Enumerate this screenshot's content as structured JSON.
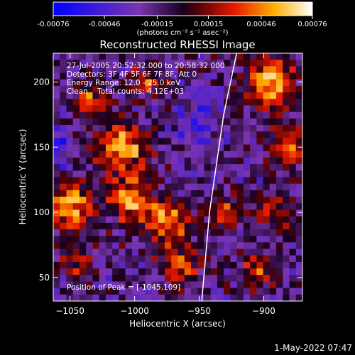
{
  "chart_data": {
    "type": "heatmap",
    "title": "Reconstructed RHESSI Image",
    "xlabel": "Heliocentric X (arcsec)",
    "ylabel": "Heliocentric Y (arcsec)",
    "xlim": [
      -1063,
      -870
    ],
    "ylim": [
      32,
      222
    ],
    "x_ticks": [
      -1050,
      -1000,
      -950,
      -900
    ],
    "y_ticks": [
      50,
      100,
      150,
      200
    ],
    "colorbar": {
      "min": -0.00076,
      "max": 0.00076,
      "tick_values": [
        -0.00076,
        -0.00046,
        -0.00015,
        0.00015,
        0.00046,
        0.00076
      ],
      "tick_labels": [
        "-0.00076",
        "-0.00046",
        "-0.00015",
        "0.00015",
        "0.00046",
        "0.00076"
      ],
      "units_label": "(photons cm⁻² s⁻¹ asec⁻²)"
    },
    "annotations": {
      "time_range": "27-Jul-2005 20:52:32.000 to 20:58:32.000",
      "detectors": "Detectors: 3F 4F 5F 6F 7F 8F, Att 0",
      "energy_range": "Energy Range: 12.0 - 25.0 keV",
      "clean_counts": "Clean    Total counts: 4.12E+03",
      "peak_position": "Position of Peak = [-1045,109]"
    },
    "limb": [
      [
        -921,
        222
      ],
      [
        -931,
        175
      ],
      [
        -942,
        100
      ],
      [
        -948,
        32
      ]
    ],
    "peak": [
      -1045,
      109
    ],
    "grid": false,
    "grid_cells": [
      38,
      38
    ],
    "intensity_blobs": [
      {
        "x": -1050,
        "y": 105,
        "amp": 1.0,
        "r": 18
      },
      {
        "x": -1010,
        "y": 150,
        "amp": 0.9,
        "r": 20
      },
      {
        "x": -1005,
        "y": 110,
        "amp": 0.8,
        "r": 16
      },
      {
        "x": -975,
        "y": 95,
        "amp": 0.85,
        "r": 18
      },
      {
        "x": -965,
        "y": 60,
        "amp": 0.7,
        "r": 14
      },
      {
        "x": -1035,
        "y": 185,
        "amp": 0.6,
        "r": 14
      },
      {
        "x": -990,
        "y": 200,
        "amp": 0.55,
        "r": 12
      },
      {
        "x": -930,
        "y": 100,
        "amp": 0.6,
        "r": 14
      },
      {
        "x": -895,
        "y": 200,
        "amp": 0.9,
        "r": 20
      },
      {
        "x": -880,
        "y": 150,
        "amp": 0.75,
        "r": 16
      },
      {
        "x": -890,
        "y": 100,
        "amp": 0.6,
        "r": 14
      },
      {
        "x": -905,
        "y": 55,
        "amp": 0.55,
        "r": 14
      },
      {
        "x": -1045,
        "y": 60,
        "amp": 0.5,
        "r": 12
      },
      {
        "x": -1060,
        "y": 150,
        "amp": -0.5,
        "r": 14
      },
      {
        "x": -950,
        "y": 170,
        "amp": -0.4,
        "r": 16
      }
    ]
  },
  "footer": {
    "timestamp": "1-May-2022 07:47"
  }
}
